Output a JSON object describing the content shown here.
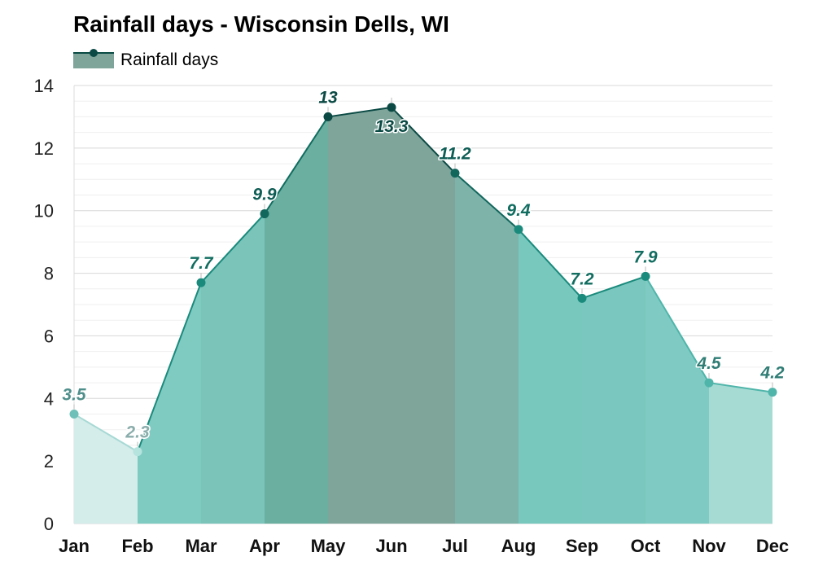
{
  "chart_data": {
    "type": "area",
    "title": "Rainfall days - Wisconsin Dells, WI",
    "xlabel": "",
    "ylabel": "",
    "categories": [
      "Jan",
      "Feb",
      "Mar",
      "Apr",
      "May",
      "Jun",
      "Jul",
      "Aug",
      "Sep",
      "Oct",
      "Nov",
      "Dec"
    ],
    "series": [
      {
        "name": "Rainfall days",
        "values": [
          3.5,
          2.3,
          7.7,
          9.9,
          13,
          13.3,
          11.2,
          9.4,
          7.2,
          7.9,
          4.5,
          4.2
        ],
        "labels": [
          "3.5",
          "2.3",
          "7.7",
          "9.9",
          "13",
          "13.3",
          "11.2",
          "9.4",
          "7.2",
          "7.9",
          "4.5",
          "4.2"
        ]
      }
    ],
    "ylim": [
      0,
      14
    ],
    "yticks": [
      "0",
      "2",
      "4",
      "6",
      "8",
      "10",
      "12",
      "14"
    ],
    "grid": true,
    "legend_position": "top-left",
    "colors": {
      "legend_fill": "#7fa59b",
      "legend_line": "#0b4a44",
      "segment_fills": [
        "#d4ecea",
        "#7fcbc2",
        "#7ac4ba",
        "#6aaf9f",
        "#7fa59b",
        "#7fa59b",
        "#7eb3aa",
        "#78c8be",
        "#79c7be",
        "#7fcbc3",
        "#a6dbd4",
        "#a6dbd4"
      ],
      "segment_lines": [
        "#a7d9d4",
        "#1a8a7c",
        "#1a8a7c",
        "#116d60",
        "#0b4a44",
        "#0b4a44",
        "#12675d",
        "#1a8a7c",
        "#1a8a7c",
        "#4fb5aa",
        "#4fb5aa",
        "#4fb5aa"
      ],
      "point_colors": [
        "#6ec0b8",
        "#b5e3de",
        "#1a8a7c",
        "#12675d",
        "#0b4a44",
        "#0b4a44",
        "#12675d",
        "#1a8a7c",
        "#1a8a7c",
        "#1a8a7c",
        "#4fb5aa",
        "#4fb5aa"
      ],
      "label_colors": [
        "#4f8f8b",
        "#8aadab",
        "#116d60",
        "#0e5d55",
        "#0b4a44",
        "#0b4a44",
        "#0e5d55",
        "#116d60",
        "#116d60",
        "#116d60",
        "#2f7d75",
        "#2f7d75"
      ]
    }
  }
}
